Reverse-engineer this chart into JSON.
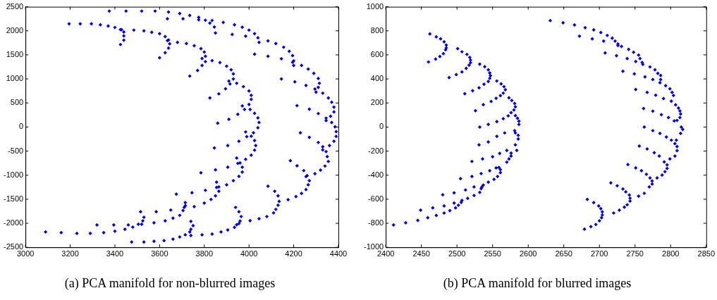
{
  "chart_data": [
    {
      "type": "scatter",
      "title": "(a) PCA manifold for non-blurred images",
      "color": "#0000dd",
      "marker": "diamond",
      "xlim": [
        3000,
        4400
      ],
      "xticks": [
        3000,
        3200,
        3400,
        3600,
        3800,
        4000,
        4200,
        4400
      ],
      "ylim": [
        -2500,
        2500
      ],
      "yticks": [
        -2500,
        -2000,
        -1500,
        -1000,
        -500,
        0,
        500,
        1000,
        1500,
        2000,
        2500
      ],
      "x": [
        3375,
        3450,
        3520,
        3580,
        3640,
        3635,
        3690,
        3705,
        3735,
        3775,
        3775,
        3805,
        3825,
        3835,
        3845,
        3850,
        3885,
        3925,
        3935,
        3970,
        3985,
        4000,
        4025,
        4040,
        4045,
        4025,
        4085,
        4085,
        4120,
        4145,
        4155,
        4180,
        4195,
        4200,
        4200,
        4195,
        4205,
        4145,
        4235,
        4265,
        4255,
        4290,
        4310,
        4315,
        4310,
        4295,
        4300,
        4330,
        4355,
        4370,
        4380,
        4380,
        4365,
        4345,
        4345,
        4370,
        4310,
        4270,
        4215,
        4385,
        4390,
        3195,
        3245,
        3295,
        3335,
        3370,
        3400,
        3425,
        3430,
        3440,
        3440,
        3440,
        3425,
        3485,
        3530,
        3565,
        3600,
        3625,
        3635,
        3640,
        3645,
        3640,
        3625,
        3600,
        3680,
        3720,
        3755,
        3785,
        3800,
        3805,
        3790,
        3805,
        3790,
        3770,
        3735,
        3835,
        3870,
        3900,
        3920,
        3930,
        3930,
        3910,
        3915,
        3945,
        3895,
        3865,
        3825,
        3975,
        4000,
        4010,
        4010,
        4000,
        3970,
        3980,
        4005,
        4025,
        4040,
        4045,
        4040,
        4020,
        3985,
        3950,
        3910,
        3860,
        4230,
        3990,
        4010,
        4025,
        4030,
        4025,
        4010,
        3985,
        3945,
        3950,
        3960,
        3970,
        3970,
        3955,
        3930,
        3900,
        3905,
        3955,
        3905,
        3845,
        3850,
        3855,
        3855,
        3865,
        3865,
        3850,
        3830,
        3800,
        3805,
        3785,
        3745,
        3675,
        3715,
        3715,
        3710,
        3705,
        3690,
        3660,
        3625,
        3575,
        3530,
        3525,
        3520,
        3505,
        3480,
        3445,
        3400,
        3350,
        3290,
        3230,
        3160,
        3090,
        3320,
        3395,
        3460,
        3515,
        3585,
        3650,
        3755,
        3475,
        3530,
        3575,
        3620,
        3660,
        3690,
        3715,
        3740,
        3735,
        3740,
        3750,
        3740,
        3790,
        3835,
        3875,
        3905,
        3935,
        3945,
        3955,
        3960,
        3965,
        3955,
        3940,
        4005,
        4045,
        4080,
        4110,
        4120,
        4130,
        4135,
        4130,
        4115,
        4085,
        4175,
        4210,
        4235,
        4255,
        4265,
        4270,
        4260,
        4255,
        4245,
        4215,
        4185,
        4295,
        4320,
        4340,
        4355,
        4350,
        4345,
        4330,
        4330,
        4310,
        4270,
        4360,
        4380,
        4390
      ],
      "values": [
        2410,
        2410,
        2410,
        2410,
        2390,
        2250,
        2360,
        2250,
        2320,
        2280,
        2230,
        2220,
        2160,
        2215,
        2080,
        1955,
        2175,
        1925,
        2125,
        2075,
        1890,
        2015,
        1940,
        1855,
        1760,
        1515,
        1790,
        1470,
        1735,
        1420,
        1660,
        1575,
        1485,
        1280,
        1375,
        1345,
        940,
        1000,
        1280,
        1205,
        865,
        1115,
        1010,
        910,
        825,
        790,
        725,
        705,
        605,
        515,
        415,
        315,
        225,
        185,
        135,
        95,
        280,
        370,
        445,
        5,
        -95,
        2145,
        2145,
        2145,
        2125,
        2100,
        2070,
        2025,
        2025,
        1975,
        1895,
        1805,
        1715,
        2015,
        2000,
        1970,
        1940,
        1880,
        1795,
        1810,
        1730,
        1640,
        1545,
        1440,
        1760,
        1735,
        1690,
        1630,
        1560,
        1470,
        1425,
        1360,
        1280,
        1175,
        1060,
        1380,
        1340,
        1265,
        1190,
        1105,
        1000,
        955,
        895,
        910,
        795,
        690,
        605,
        840,
        750,
        660,
        575,
        470,
        440,
        365,
        365,
        285,
        190,
        95,
        -15,
        -120,
        -100,
        265,
        160,
        80,
        -120,
        -200,
        -190,
        -280,
        -385,
        -480,
        -585,
        -670,
        -645,
        -755,
        -745,
        -835,
        -935,
        -1025,
        -1115,
        -1200,
        -835,
        -295,
        -385,
        -435,
        -890,
        -1145,
        -1255,
        -1245,
        -1335,
        -1430,
        -1505,
        -1580,
        -1315,
        -950,
        -1365,
        -1395,
        -1570,
        -1635,
        -1670,
        -1735,
        -1835,
        -1895,
        -1950,
        -1990,
        -1875,
        -1950,
        -2020,
        -2020,
        -2080,
        -2125,
        -2165,
        -2195,
        -2210,
        -2210,
        -2195,
        -2180,
        -2035,
        -2035,
        -2035,
        -1760,
        -1760,
        -1725,
        -1655,
        -2390,
        -2390,
        -2375,
        -2360,
        -2330,
        -2285,
        -2240,
        -2255,
        -2180,
        -2125,
        -2050,
        -1960,
        -2240,
        -2225,
        -2180,
        -2140,
        -2085,
        -2030,
        -2005,
        -1955,
        -1860,
        -1760,
        -1670,
        -1945,
        -1905,
        -1860,
        -1785,
        -1710,
        -1625,
        -1545,
        -1430,
        -1335,
        -1230,
        -1510,
        -1445,
        -1380,
        -1300,
        -1200,
        -1115,
        -1010,
        -1030,
        -905,
        -805,
        -700,
        -970,
        -895,
        -810,
        -715,
        -615,
        -510,
        -475,
        -410,
        -320,
        -215,
        -385,
        -295,
        -195
      ]
    },
    {
      "type": "scatter",
      "title": "(b) PCA manifold for blurred images",
      "color": "#0000dd",
      "marker": "diamond",
      "xlim": [
        2400,
        2850
      ],
      "xticks": [
        2400,
        2450,
        2500,
        2550,
        2600,
        2650,
        2700,
        2750,
        2800,
        2850
      ],
      "ylim": [
        -1000,
        1000
      ],
      "yticks": [
        -1000,
        -800,
        -600,
        -400,
        -200,
        0,
        200,
        400,
        600,
        800,
        1000
      ],
      "x": [
        2462,
        2471,
        2477,
        2482,
        2485,
        2485,
        2484,
        2481,
        2476,
        2470,
        2460,
        2501,
        2507,
        2514,
        2518,
        2519,
        2519,
        2517,
        2513,
        2507,
        2499,
        2489,
        2532,
        2539,
        2544,
        2546,
        2547,
        2546,
        2544,
        2538,
        2531,
        2522,
        2511,
        2556,
        2562,
        2566,
        2568,
        2565,
        2561,
        2555,
        2548,
        2537,
        2526,
        2573,
        2577,
        2581,
        2582,
        2580,
        2576,
        2572,
        2565,
        2556,
        2544,
        2532,
        2582,
        2585,
        2587,
        2587,
        2581,
        2582,
        2586,
        2586,
        2582,
        2567,
        2556,
        2544,
        2531,
        2584,
        2570,
        2576,
        2576,
        2573,
        2570,
        2560,
        2550,
        2536,
        2521,
        2555,
        2559,
        2561,
        2561,
        2557,
        2552,
        2544,
        2537,
        2535,
        2534,
        2532,
        2524,
        2515,
        2507,
        2506,
        2502,
        2498,
        2490,
        2482,
        2471,
        2459,
        2445,
        2428,
        2411,
        2546,
        2534,
        2521,
        2505,
        2524,
        2512,
        2496,
        2480,
        2496,
        2482,
        2466,
        2449,
        2631,
        2649,
        2665,
        2680,
        2692,
        2702,
        2711,
        2718,
        2722,
        2726,
        2726,
        2731,
        2741,
        2748,
        2755,
        2757,
        2760,
        2761,
        2771,
        2778,
        2782,
        2786,
        2786,
        2785,
        2793,
        2799,
        2802,
        2804,
        2801,
        2807,
        2811,
        2813,
        2814,
        2813,
        2809,
        2805,
        2815,
        2672,
        2690,
        2706,
        2708,
        2724,
        2739,
        2751,
        2733,
        2749,
        2764,
        2775,
        2751,
        2767,
        2779,
        2790,
        2762,
        2775,
        2787,
        2797,
        2763,
        2775,
        2785,
        2794,
        2801,
        2808,
        2806,
        2809,
        2809,
        2806,
        2799,
        2791,
        2795,
        2795,
        2792,
        2788,
        2781,
        2756,
        2767,
        2777,
        2784,
        2740,
        2751,
        2759,
        2766,
        2771,
        2774,
        2774,
        2770,
        2763,
        2755,
        2716,
        2725,
        2733,
        2737,
        2742,
        2743,
        2743,
        2739,
        2735,
        2728,
        2720,
        2683,
        2692,
        2699,
        2702,
        2704,
        2704,
        2703,
        2700,
        2695,
        2688,
        2679,
        2817,
        2814
      ],
      "values": [
        774,
        750,
        733,
        709,
        681,
        658,
        642,
        610,
        587,
        565,
        541,
        652,
        626,
        604,
        579,
        557,
        535,
        514,
        488,
        458,
        436,
        411,
        523,
        502,
        476,
        450,
        427,
        405,
        379,
        356,
        326,
        302,
        277,
        383,
        359,
        336,
        310,
        282,
        261,
        239,
        213,
        186,
        136,
        243,
        221,
        196,
        168,
        142,
        120,
        93,
        69,
        45,
        22,
        0,
        95,
        73,
        49,
        22,
        -30,
        -49,
        -69,
        -99,
        -148,
        -49,
        -77,
        -124,
        -148,
        -194,
        -194,
        -217,
        -241,
        -265,
        -292,
        -219,
        -247,
        -265,
        -286,
        -340,
        -336,
        -354,
        -379,
        -411,
        -435,
        -458,
        -482,
        -498,
        -512,
        -543,
        -569,
        -593,
        -610,
        -626,
        -650,
        -672,
        -695,
        -715,
        -735,
        -754,
        -776,
        -796,
        -814,
        -363,
        -387,
        -411,
        -429,
        -498,
        -523,
        -547,
        -563,
        -632,
        -656,
        -672,
        -691,
        885,
        867,
        849,
        826,
        808,
        786,
        762,
        739,
        715,
        677,
        691,
        670,
        646,
        622,
        598,
        569,
        537,
        521,
        500,
        476,
        446,
        429,
        395,
        369,
        344,
        318,
        288,
        263,
        215,
        184,
        158,
        134,
        109,
        79,
        55,
        51,
        0,
        756,
        733,
        715,
        616,
        593,
        569,
        545,
        464,
        442,
        417,
        395,
        312,
        288,
        265,
        237,
        154,
        132,
        103,
        79,
        0,
        -30,
        -53,
        -83,
        -109,
        -109,
        -138,
        -162,
        -196,
        -241,
        -265,
        -290,
        -314,
        -344,
        -371,
        -399,
        -423,
        -158,
        -182,
        -213,
        -241,
        -312,
        -340,
        -363,
        -393,
        -423,
        -448,
        -474,
        -498,
        -551,
        -575,
        -464,
        -488,
        -515,
        -539,
        -565,
        -592,
        -616,
        -646,
        -666,
        -691,
        -715,
        -602,
        -628,
        -656,
        -679,
        -705,
        -731,
        -754,
        -780,
        -810,
        -828,
        -849,
        -20,
        -53
      ]
    }
  ]
}
